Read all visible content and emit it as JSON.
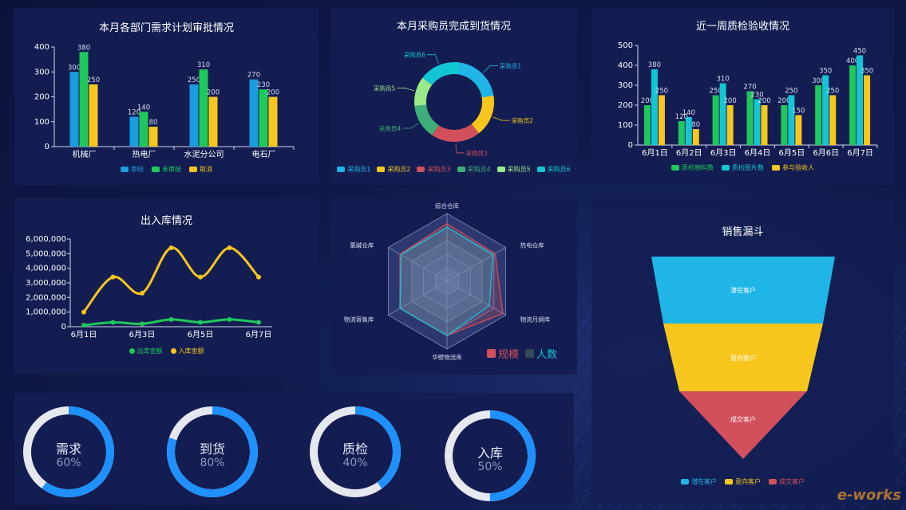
{
  "colors": {
    "blue": "#1a9ce0",
    "green": "#1fc85a",
    "yellow": "#f7c71d",
    "cyan": "#12c6d4",
    "red": "#d1505c",
    "panel": "#131d52",
    "ring": "#1e90ff",
    "ring_track": "#e6e8f0"
  },
  "chart_data": [
    {
      "type": "bar",
      "title": "本月各部门需求计划审批情况",
      "categories": [
        "机械厂",
        "热电厂",
        "水泥分公司",
        "电石厂"
      ],
      "series": [
        {
          "name": "审结",
          "values": [
            300,
            120,
            250,
            270
          ]
        },
        {
          "name": "未审结",
          "values": [
            380,
            140,
            310,
            230
          ]
        },
        {
          "name": "取消",
          "values": [
            250,
            80,
            200,
            200
          ]
        }
      ],
      "ylim": [
        0,
        400
      ],
      "yticks": [
        "0",
        "100",
        "200",
        "300",
        "400"
      ],
      "legend": "bottom"
    },
    {
      "type": "pie",
      "title": "本月采购员完成到货情况",
      "categories": [
        "采购员1",
        "采购员2",
        "采购员3",
        "采购员4",
        "采购员5",
        "采购员6"
      ],
      "values": [
        20,
        17,
        20,
        14,
        12,
        17
      ],
      "legend": "bottom"
    },
    {
      "type": "bar",
      "title": "近一周质检验收情况",
      "categories": [
        "6月1日",
        "6月2日",
        "6月3日",
        "6月4日",
        "6月5日",
        "6月6日",
        "6月7日"
      ],
      "series": [
        {
          "name": "质检物料数",
          "values": [
            200,
            120,
            250,
            270,
            200,
            300,
            400
          ]
        },
        {
          "name": "质检图片数",
          "values": [
            380,
            140,
            310,
            230,
            250,
            350,
            450
          ]
        },
        {
          "name": "参与验收人",
          "values": [
            250,
            80,
            200,
            200,
            150,
            250,
            350
          ]
        }
      ],
      "ylim": [
        0,
        500
      ],
      "yticks": [
        "0",
        "100",
        "200",
        "300",
        "400",
        "500"
      ],
      "legend": "bottom"
    },
    {
      "type": "line",
      "title": "出入库情况",
      "x": [
        "6月1日",
        "6月2日",
        "6月3日",
        "6月4日",
        "6月5日",
        "6月6日",
        "6月7日"
      ],
      "xticks": [
        "6月1日",
        "6月3日",
        "6月5日",
        "6月7日"
      ],
      "series": [
        {
          "name": "出库金额",
          "values": [
            100000,
            300000,
            200000,
            500000,
            300000,
            500000,
            300000
          ]
        },
        {
          "name": "入库金额",
          "values": [
            1000000,
            3400000,
            2300000,
            5400000,
            3400000,
            5400000,
            3400000
          ]
        }
      ],
      "ylim": [
        0,
        6000000
      ],
      "yticks": [
        "0",
        "1,000,000",
        "2,000,000",
        "3,000,000",
        "4,000,000",
        "5,000,000",
        "6,000,000"
      ],
      "legend": "bottom"
    },
    {
      "type": "radar",
      "title": "",
      "indicators": [
        "综合仓库",
        "热电仓库",
        "物流月绸库",
        "华壁物流库",
        "物流寄售库",
        "氯碱仓库"
      ],
      "series": [
        {
          "name": "规模",
          "values": [
            0.85,
            0.82,
            0.95,
            0.8,
            0.8,
            0.8
          ]
        },
        {
          "name": "人数",
          "values": [
            0.8,
            0.78,
            0.72,
            0.8,
            0.8,
            0.78
          ]
        }
      ],
      "legend": "bottom-right"
    },
    {
      "type": "funnel",
      "title": "销售漏斗",
      "categories": [
        "潜在客户",
        "意向客户",
        "成交客户"
      ],
      "legend": "bottom"
    }
  ],
  "rings": [
    {
      "label": "需求",
      "value_text": "60%",
      "value": 0.6
    },
    {
      "label": "到货",
      "value_text": "80%",
      "value": 0.8
    },
    {
      "label": "质检",
      "value_text": "40%",
      "value": 0.4
    },
    {
      "label": "入库",
      "value_text": "50%",
      "value": 0.5
    }
  ],
  "watermark": "e-works"
}
